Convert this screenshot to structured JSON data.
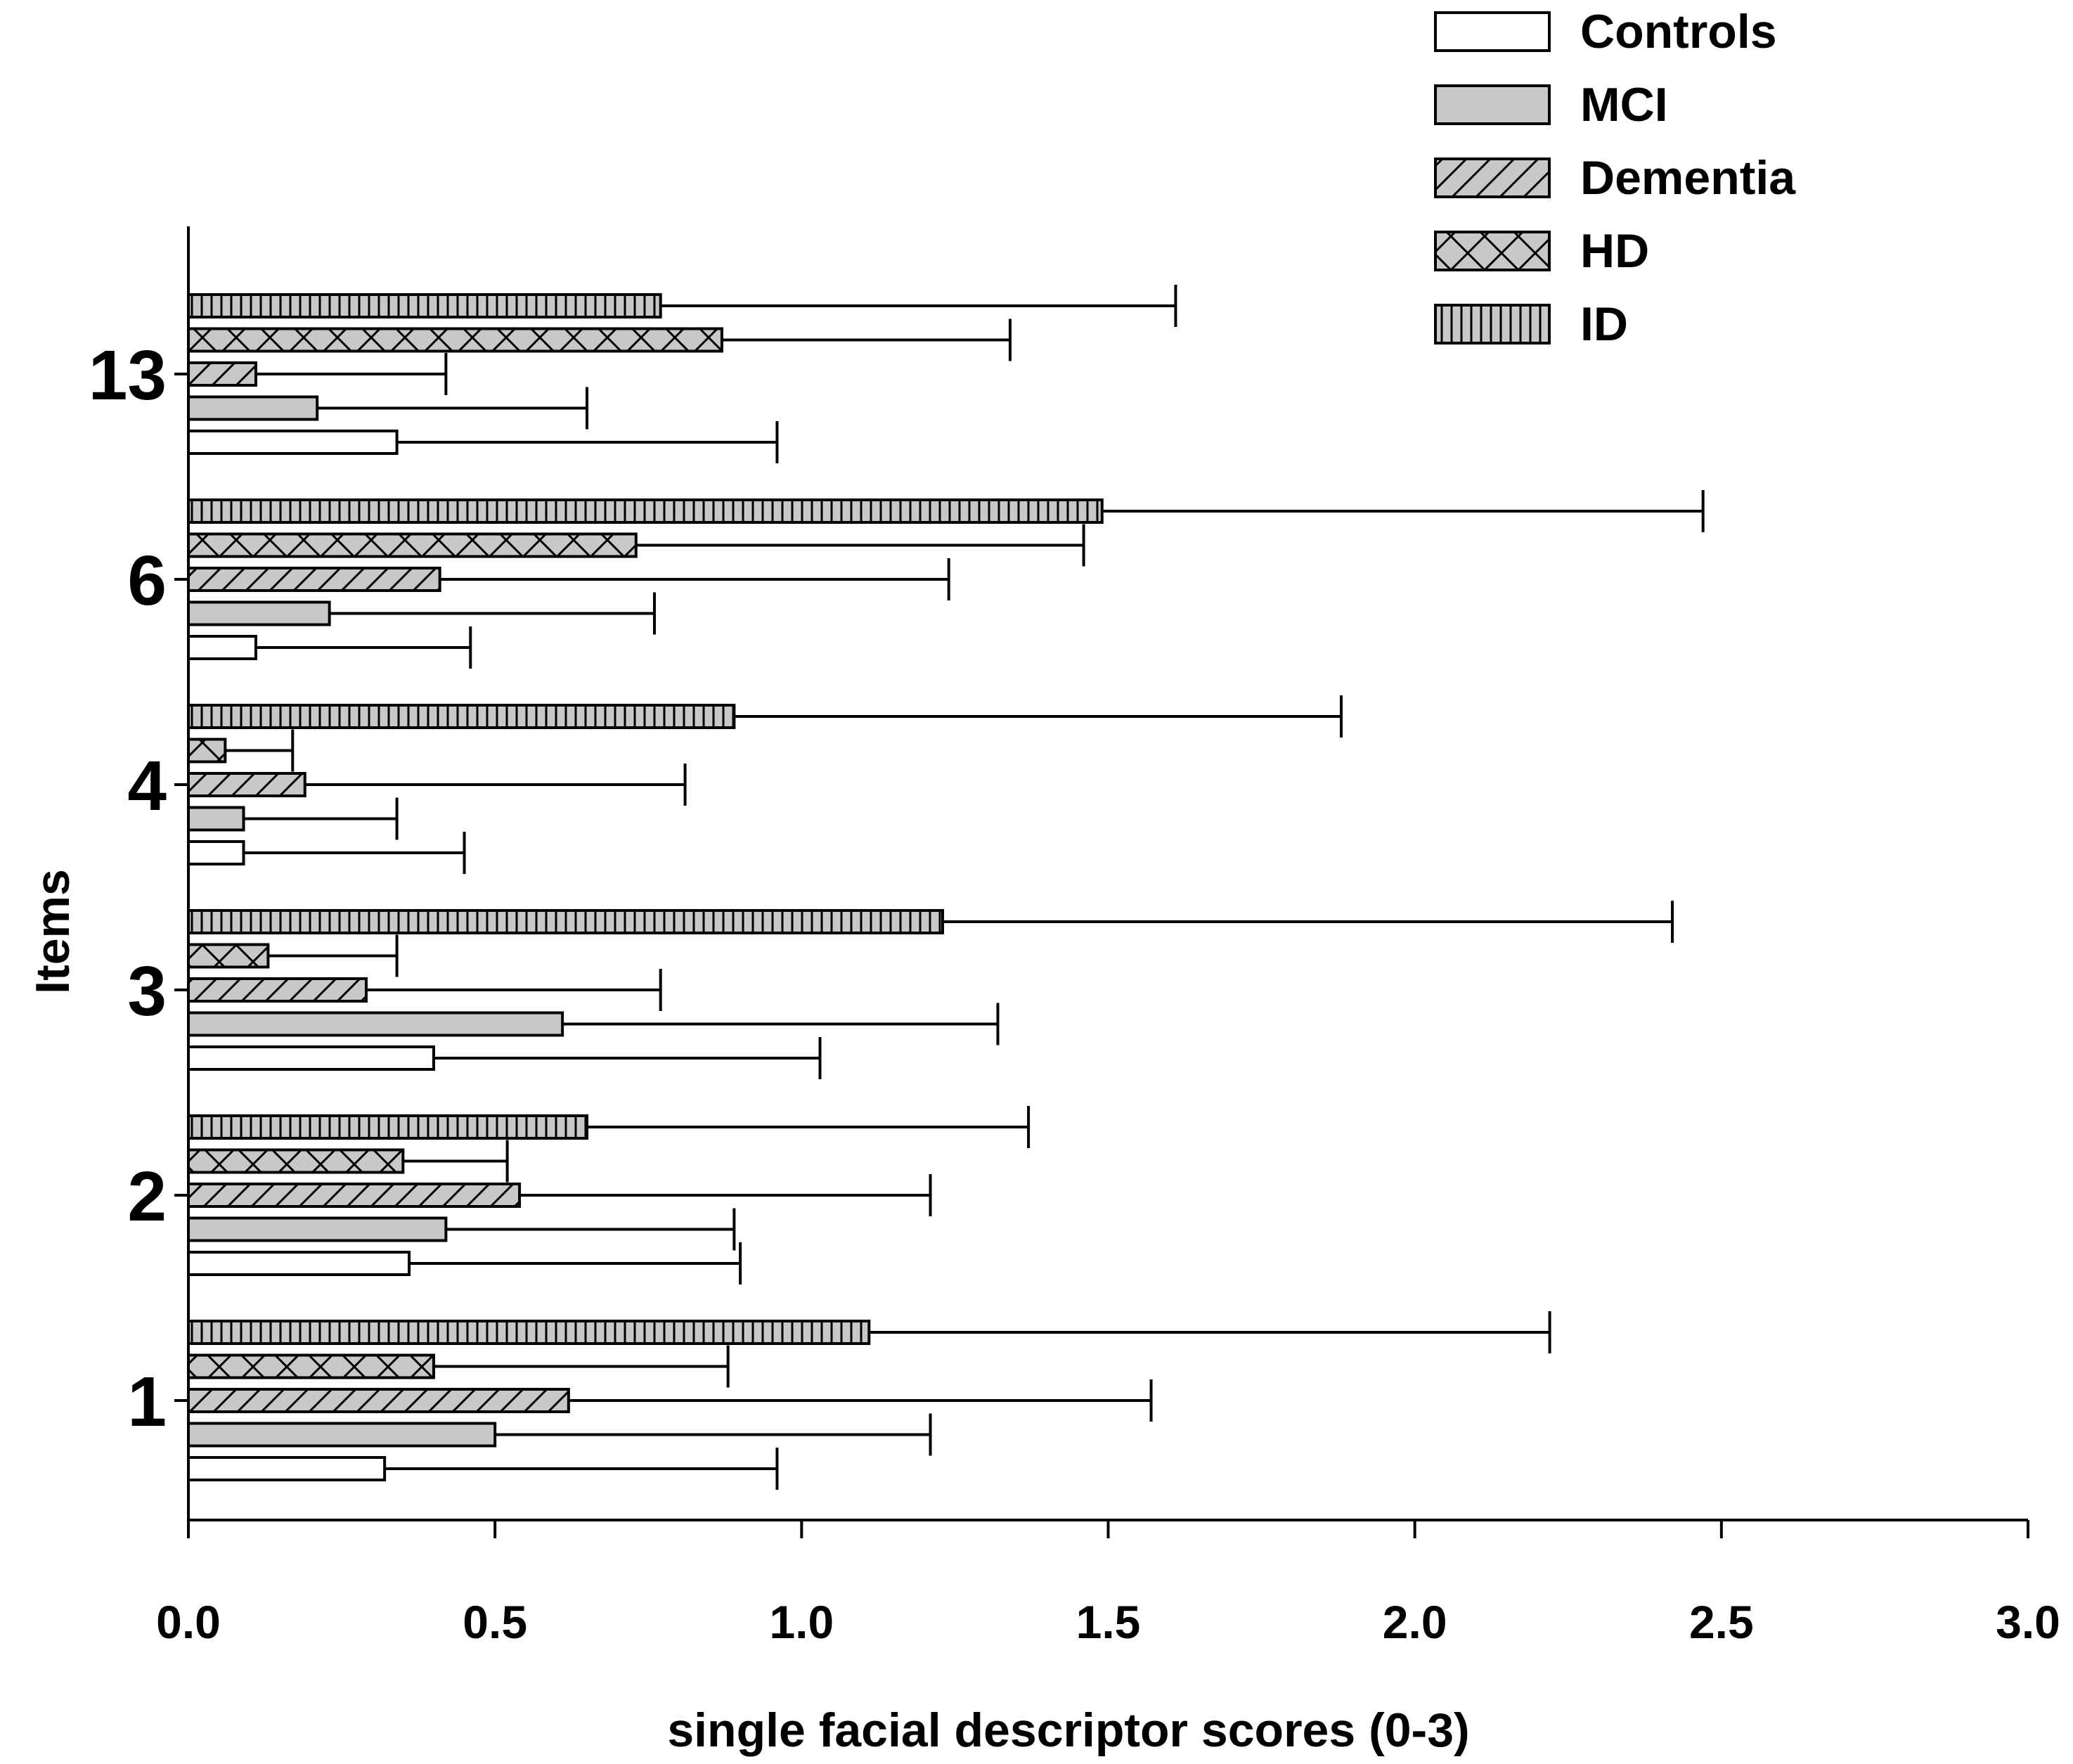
{
  "chart_data": {
    "type": "bar",
    "orientation": "horizontal",
    "title": "",
    "xlabel": "single facial descriptor scores (0-3)",
    "ylabel": "Items",
    "xlim": [
      0,
      3
    ],
    "xticks": [
      "0.0",
      "0.5",
      "1.0",
      "1.5",
      "2.0",
      "2.5",
      "3.0"
    ],
    "categories": [
      "1",
      "2",
      "3",
      "4",
      "6",
      "13"
    ],
    "error_bars": "positive standard deviation",
    "legend_position": "top-right",
    "series": [
      {
        "name": "Controls",
        "pattern": "white",
        "values": [
          0.32,
          0.36,
          0.4,
          0.09,
          0.11,
          0.34
        ],
        "errors": [
          0.64,
          0.54,
          0.63,
          0.36,
          0.35,
          0.62
        ]
      },
      {
        "name": "MCI",
        "pattern": "gray",
        "values": [
          0.5,
          0.42,
          0.61,
          0.09,
          0.23,
          0.21
        ],
        "errors": [
          0.71,
          0.47,
          0.71,
          0.25,
          0.53,
          0.44
        ]
      },
      {
        "name": "Dementia",
        "pattern": "diagonal",
        "values": [
          0.62,
          0.54,
          0.29,
          0.19,
          0.41,
          0.11
        ],
        "errors": [
          0.95,
          0.67,
          0.48,
          0.62,
          0.83,
          0.31
        ]
      },
      {
        "name": "HD",
        "pattern": "crosshatch",
        "values": [
          0.4,
          0.35,
          0.13,
          0.06,
          0.73,
          0.87
        ],
        "errors": [
          0.48,
          0.17,
          0.21,
          0.11,
          0.73,
          0.47
        ]
      },
      {
        "name": "ID",
        "pattern": "vertical",
        "values": [
          1.11,
          0.65,
          1.23,
          0.89,
          1.49,
          0.77
        ],
        "errors": [
          1.11,
          0.72,
          1.19,
          0.99,
          0.98,
          0.84
        ]
      }
    ],
    "colors": {
      "bar_fill": "#c8c8c8",
      "control_fill": "#ffffff",
      "stroke": "#000000"
    }
  }
}
